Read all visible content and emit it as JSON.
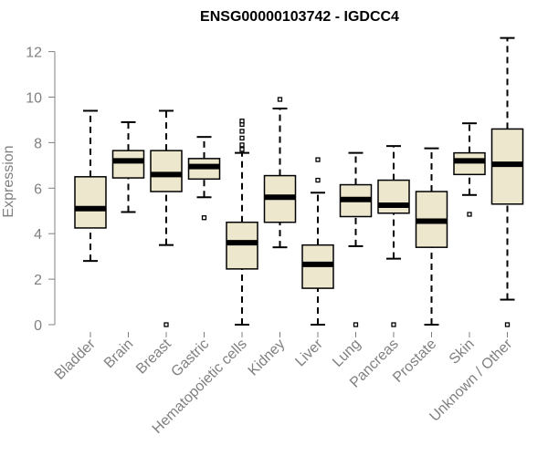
{
  "chart_data": {
    "type": "boxplot",
    "title": "ENSG00000103742 - IGDCC4",
    "xlabel": "",
    "ylabel": "Expression",
    "ylim": [
      0,
      12.5
    ],
    "yticks": [
      0,
      2,
      4,
      6,
      8,
      10,
      12
    ],
    "categories": [
      "Bladder",
      "Brain",
      "Breast",
      "Gastric",
      "Hematopoietic cells",
      "Kidney",
      "Liver",
      "Lung",
      "Pancreas",
      "Prostate",
      "Skin",
      "Unknown / Other"
    ],
    "boxes": [
      {
        "name": "Bladder",
        "whisker_low": 2.8,
        "q1": 4.25,
        "median": 5.1,
        "q3": 6.5,
        "whisker_high": 9.4,
        "outliers": []
      },
      {
        "name": "Brain",
        "whisker_low": 4.95,
        "q1": 6.45,
        "median": 7.2,
        "q3": 7.65,
        "whisker_high": 8.9,
        "outliers": []
      },
      {
        "name": "Breast",
        "whisker_low": 3.5,
        "q1": 5.85,
        "median": 6.6,
        "q3": 7.65,
        "whisker_high": 9.4,
        "outliers": [
          0
        ]
      },
      {
        "name": "Gastric",
        "whisker_low": 5.6,
        "q1": 6.4,
        "median": 6.95,
        "q3": 7.3,
        "whisker_high": 8.25,
        "outliers": [
          4.7
        ]
      },
      {
        "name": "Hematopoietic cells",
        "whisker_low": 0,
        "q1": 2.45,
        "median": 3.6,
        "q3": 4.5,
        "whisker_high": 7.55,
        "outliers": [
          7.7,
          7.9,
          8.2,
          8.5,
          8.8,
          8.95
        ]
      },
      {
        "name": "Kidney",
        "whisker_low": 3.4,
        "q1": 4.5,
        "median": 5.6,
        "q3": 6.55,
        "whisker_high": 9.5,
        "outliers": [
          9.9
        ]
      },
      {
        "name": "Liver",
        "whisker_low": 0,
        "q1": 1.6,
        "median": 2.65,
        "q3": 3.5,
        "whisker_high": 5.8,
        "outliers": [
          6.35,
          7.25
        ]
      },
      {
        "name": "Lung",
        "whisker_low": 3.45,
        "q1": 4.75,
        "median": 5.5,
        "q3": 6.15,
        "whisker_high": 7.55,
        "outliers": [
          0
        ]
      },
      {
        "name": "Pancreas",
        "whisker_low": 2.9,
        "q1": 4.9,
        "median": 5.25,
        "q3": 6.35,
        "whisker_high": 7.85,
        "outliers": [
          0
        ]
      },
      {
        "name": "Prostate",
        "whisker_low": 0,
        "q1": 3.4,
        "median": 4.55,
        "q3": 5.85,
        "whisker_high": 7.75,
        "outliers": []
      },
      {
        "name": "Skin",
        "whisker_low": 5.7,
        "q1": 6.6,
        "median": 7.2,
        "q3": 7.55,
        "whisker_high": 8.85,
        "outliers": [
          4.85
        ]
      },
      {
        "name": "Unknown / Other",
        "whisker_low": 1.1,
        "q1": 5.3,
        "median": 7.05,
        "q3": 8.6,
        "whisker_high": 12.6,
        "outliers": [
          0
        ]
      }
    ],
    "colors": {
      "box_fill": "#ede7ce",
      "box_stroke": "#000000",
      "median": "#000000",
      "axis": "#808080",
      "text": "#808080"
    },
    "grid": false,
    "legend": "none"
  }
}
